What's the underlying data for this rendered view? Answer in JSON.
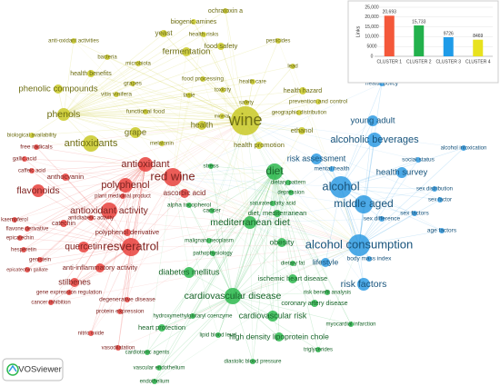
{
  "network": {
    "clusters": [
      {
        "color": "#e8413c",
        "nodes": [
          "free radicals",
          "gallic acid",
          "caffeic acid",
          "antioxidant",
          "anthocyanin",
          "red wine",
          "flavonoids",
          "polyphenol",
          "plant medicinal product",
          "ascorbic acid",
          "kaempferol",
          "antioxidant activity",
          "catechin",
          "antidiabetic activity",
          "flavone derivative",
          "polyphenol derivative",
          "epicatechin",
          "quercetin",
          "hesperetin",
          "resveratrol",
          "genistein",
          "anti-inflammatory activity",
          "epicatechin gallate",
          "stilbenes",
          "gene expression regulation",
          "cancer inhibition",
          "degenerative disease",
          "protein expression",
          "nitric oxide",
          "vasodilatation"
        ]
      },
      {
        "color": "#2db84d",
        "nodes": [
          "stress",
          "diet",
          "dietary pattern",
          "depression",
          "saturated fatty acid",
          "alpha tocopherol",
          "diet, mediterranean",
          "cancer",
          "mediterranean diet",
          "malignant neoplasm",
          "obesity",
          "pathophysiology",
          "dietary fat",
          "diabetes mellitus",
          "ischemic heart disease",
          "risk benefit analysis",
          "cardiovascular disease",
          "coronary artery disease",
          "hydroxymethylglutaryl coenzyme",
          "cardiovascular risk",
          "heart protection",
          "lipid blood level",
          "high density lipoprotein chole",
          "myocardial infarction",
          "triglycerides",
          "cardiotonic agents",
          "diastolic blood pressure",
          "vascular endothelium",
          "endothelium"
        ]
      },
      {
        "color": "#2f9be3",
        "nodes": [
          "health policy",
          "young adult",
          "alcohol intoxication",
          "alcoholic beverages",
          "risk assessment",
          "mental health",
          "social status",
          "health survey",
          "alcohol",
          "sex distribution",
          "sex factor",
          "middle aged",
          "sex factors",
          "sex difference",
          "age factors",
          "alcohol consumption",
          "body mass index",
          "lifestyle",
          "risk factors"
        ]
      },
      {
        "color": "#c9c926",
        "nodes": [
          "ochratoxin a",
          "biogenic amines",
          "yeast",
          "health risks",
          "anti-oxidant activities",
          "food safety",
          "pesticides",
          "fermentation",
          "bacteria",
          "microbiota",
          "lead",
          "health benefits",
          "food processing",
          "health care",
          "grapes",
          "phenolic compounds",
          "toxicity",
          "health hazard",
          "vitis vinifera",
          "taste",
          "prevention and control",
          "safety",
          "functional food",
          "geographic distribution",
          "phenols",
          "mineral",
          "wine",
          "health",
          "ethanol",
          "grape",
          "biological availability",
          "antioxidants",
          "melatonin",
          "health promotion"
        ]
      }
    ]
  },
  "chart_data": {
    "type": "bar",
    "y_label": "Links",
    "categories": [
      "CLUSTER 1",
      "CLUSTER 2",
      "CLUSTER 3",
      "CLUSTER 4"
    ],
    "values": [
      20693,
      15733,
      9726,
      8469
    ],
    "value_labels": [
      "20,693",
      "15,733",
      "9726",
      "8469"
    ],
    "colors": [
      "#f4583a",
      "#22b14c",
      "#1e9be8",
      "#e8e21e"
    ],
    "ylim": [
      0,
      25000
    ],
    "yticks": [
      0,
      5000,
      {
        "value": 10000,
        "label": "10,000"
      },
      {
        "value": 15000,
        "label": "15,000"
      },
      {
        "value": 20000,
        "label": "20,000"
      },
      {
        "value": 25000,
        "label": "25,000"
      }
    ]
  },
  "logo": "VOSviewer"
}
